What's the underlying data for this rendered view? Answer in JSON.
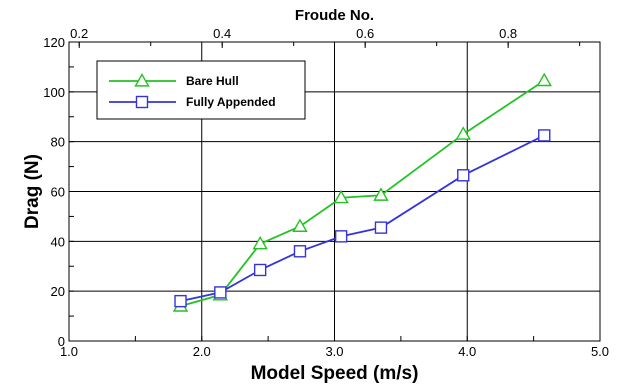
{
  "chart_data": {
    "type": "line",
    "title": "",
    "xlabel": "Model Speed (m/s)",
    "ylabel": "Drag (N)",
    "x2label": "Froude No.",
    "xlim": [
      1.0,
      5.0
    ],
    "ylim": [
      0,
      120
    ],
    "x_ticks": [
      1.0,
      2.0,
      3.0,
      4.0,
      5.0
    ],
    "x_tick_labels": [
      "1.0",
      "2.0",
      "3.0",
      "4.0",
      "5.0"
    ],
    "y_ticks": [
      0,
      20,
      40,
      60,
      80,
      100,
      120
    ],
    "y_tick_labels": [
      "0",
      "20",
      "40",
      "60",
      "80",
      "100",
      "120"
    ],
    "x2_ticks": [
      0.2,
      0.4,
      0.6,
      0.8
    ],
    "x2_tick_labels": [
      "0.2",
      "0.4",
      "0.6",
      "0.8"
    ],
    "x2_per_x": 0.1857,
    "grid": true,
    "legend_position": "top-left",
    "series": [
      {
        "name": "Bare Hull",
        "color": "#22c322",
        "marker": "triangle",
        "x": [
          1.84,
          2.14,
          2.44,
          2.74,
          3.05,
          3.35,
          3.97,
          4.58
        ],
        "y": [
          14.0,
          18.5,
          39.0,
          46.0,
          57.5,
          58.5,
          83.0,
          104.5
        ]
      },
      {
        "name": "Fully Appended",
        "color": "#3434d8",
        "marker": "square",
        "x": [
          1.84,
          2.14,
          2.44,
          2.74,
          3.05,
          3.35,
          3.97,
          4.58
        ],
        "y": [
          16.0,
          19.5,
          28.5,
          36.0,
          42.0,
          45.5,
          66.5,
          82.5
        ]
      }
    ]
  }
}
